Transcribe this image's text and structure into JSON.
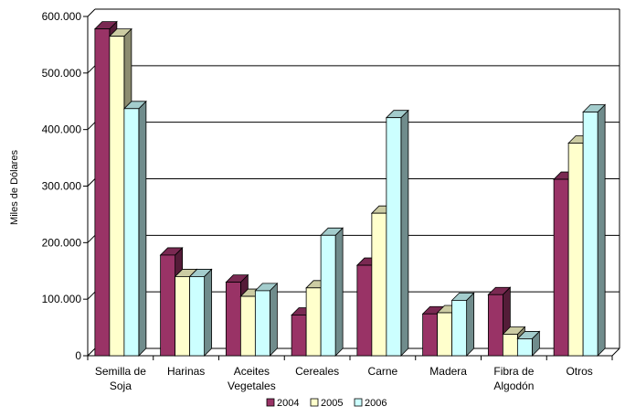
{
  "chart_data": {
    "type": "bar",
    "title": "",
    "xlabel": "",
    "ylabel": "Miles de Dólares",
    "ylim": [
      0,
      600000
    ],
    "y_ticks": [
      0,
      100000,
      200000,
      300000,
      400000,
      500000,
      600000
    ],
    "y_tick_labels": [
      "0",
      "100.000",
      "200.000",
      "300.000",
      "400.000",
      "500.000",
      "600.000"
    ],
    "categories": [
      [
        "Semilla de",
        "Soja"
      ],
      [
        "Harinas"
      ],
      [
        "Aceites",
        "Vegetales"
      ],
      [
        "Cereales"
      ],
      [
        "Carne"
      ],
      [
        "Madera"
      ],
      [
        "Fibra de",
        "Algodón"
      ],
      [
        "Otros"
      ]
    ],
    "series": [
      {
        "name": "2004",
        "color": "#993366",
        "values": [
          578000,
          178000,
          130000,
          72000,
          160000,
          74000,
          108000,
          312000
        ]
      },
      {
        "name": "2005",
        "color": "#ffffcc",
        "values": [
          565000,
          140000,
          105000,
          120000,
          252000,
          76000,
          38000,
          376000
        ]
      },
      {
        "name": "2006",
        "color": "#ccffff",
        "values": [
          437000,
          140000,
          115000,
          213000,
          421000,
          98000,
          30000,
          431000
        ]
      }
    ],
    "grid": true,
    "legend_position": "bottom"
  }
}
